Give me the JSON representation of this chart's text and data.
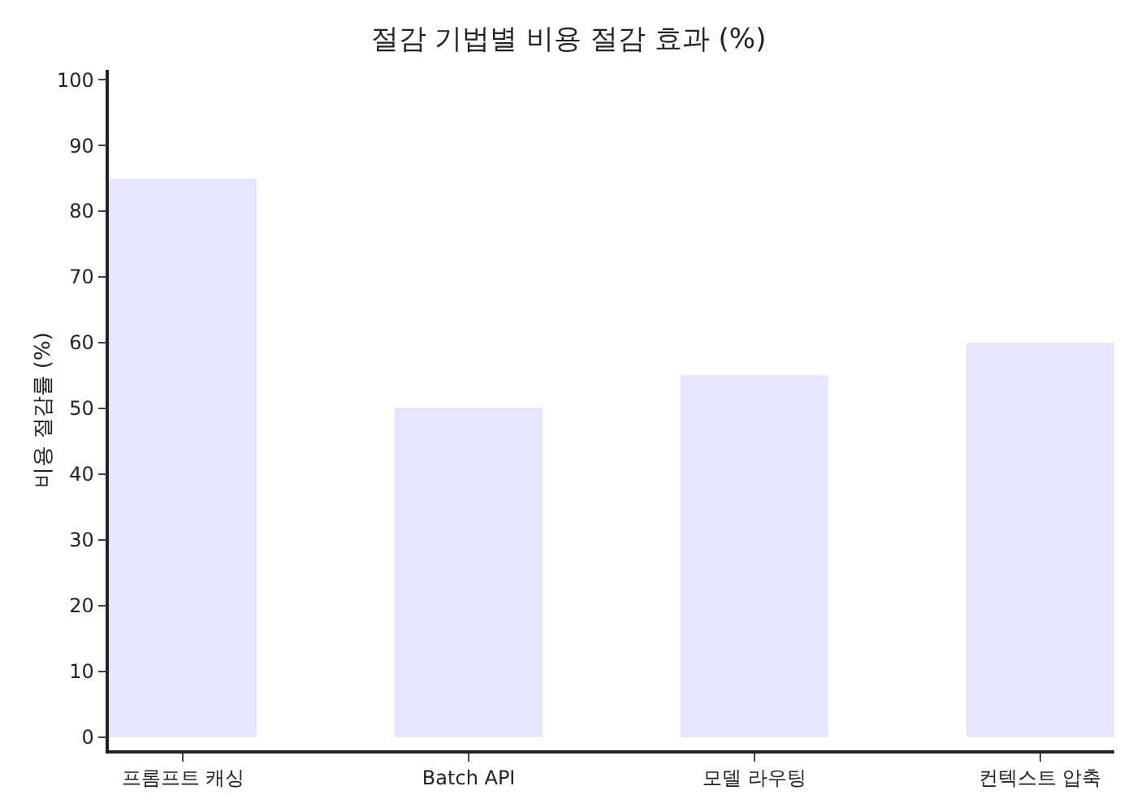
{
  "chart_data": {
    "type": "bar",
    "title": "절감 기법별 비용 절감 효과 (%)",
    "ylabel": "비용 절감률 (%)",
    "categories": [
      "프롬프트 캐싱",
      "Batch API",
      "모델 라우팅",
      "컨텍스트 압축"
    ],
    "values": [
      85,
      50,
      55,
      60
    ],
    "color": "#e6e6fa",
    "ylim": [
      -2,
      101.5
    ],
    "yticks": [
      0,
      10,
      20,
      30,
      40,
      50,
      60,
      70,
      80,
      90,
      100
    ],
    "grid": false
  }
}
